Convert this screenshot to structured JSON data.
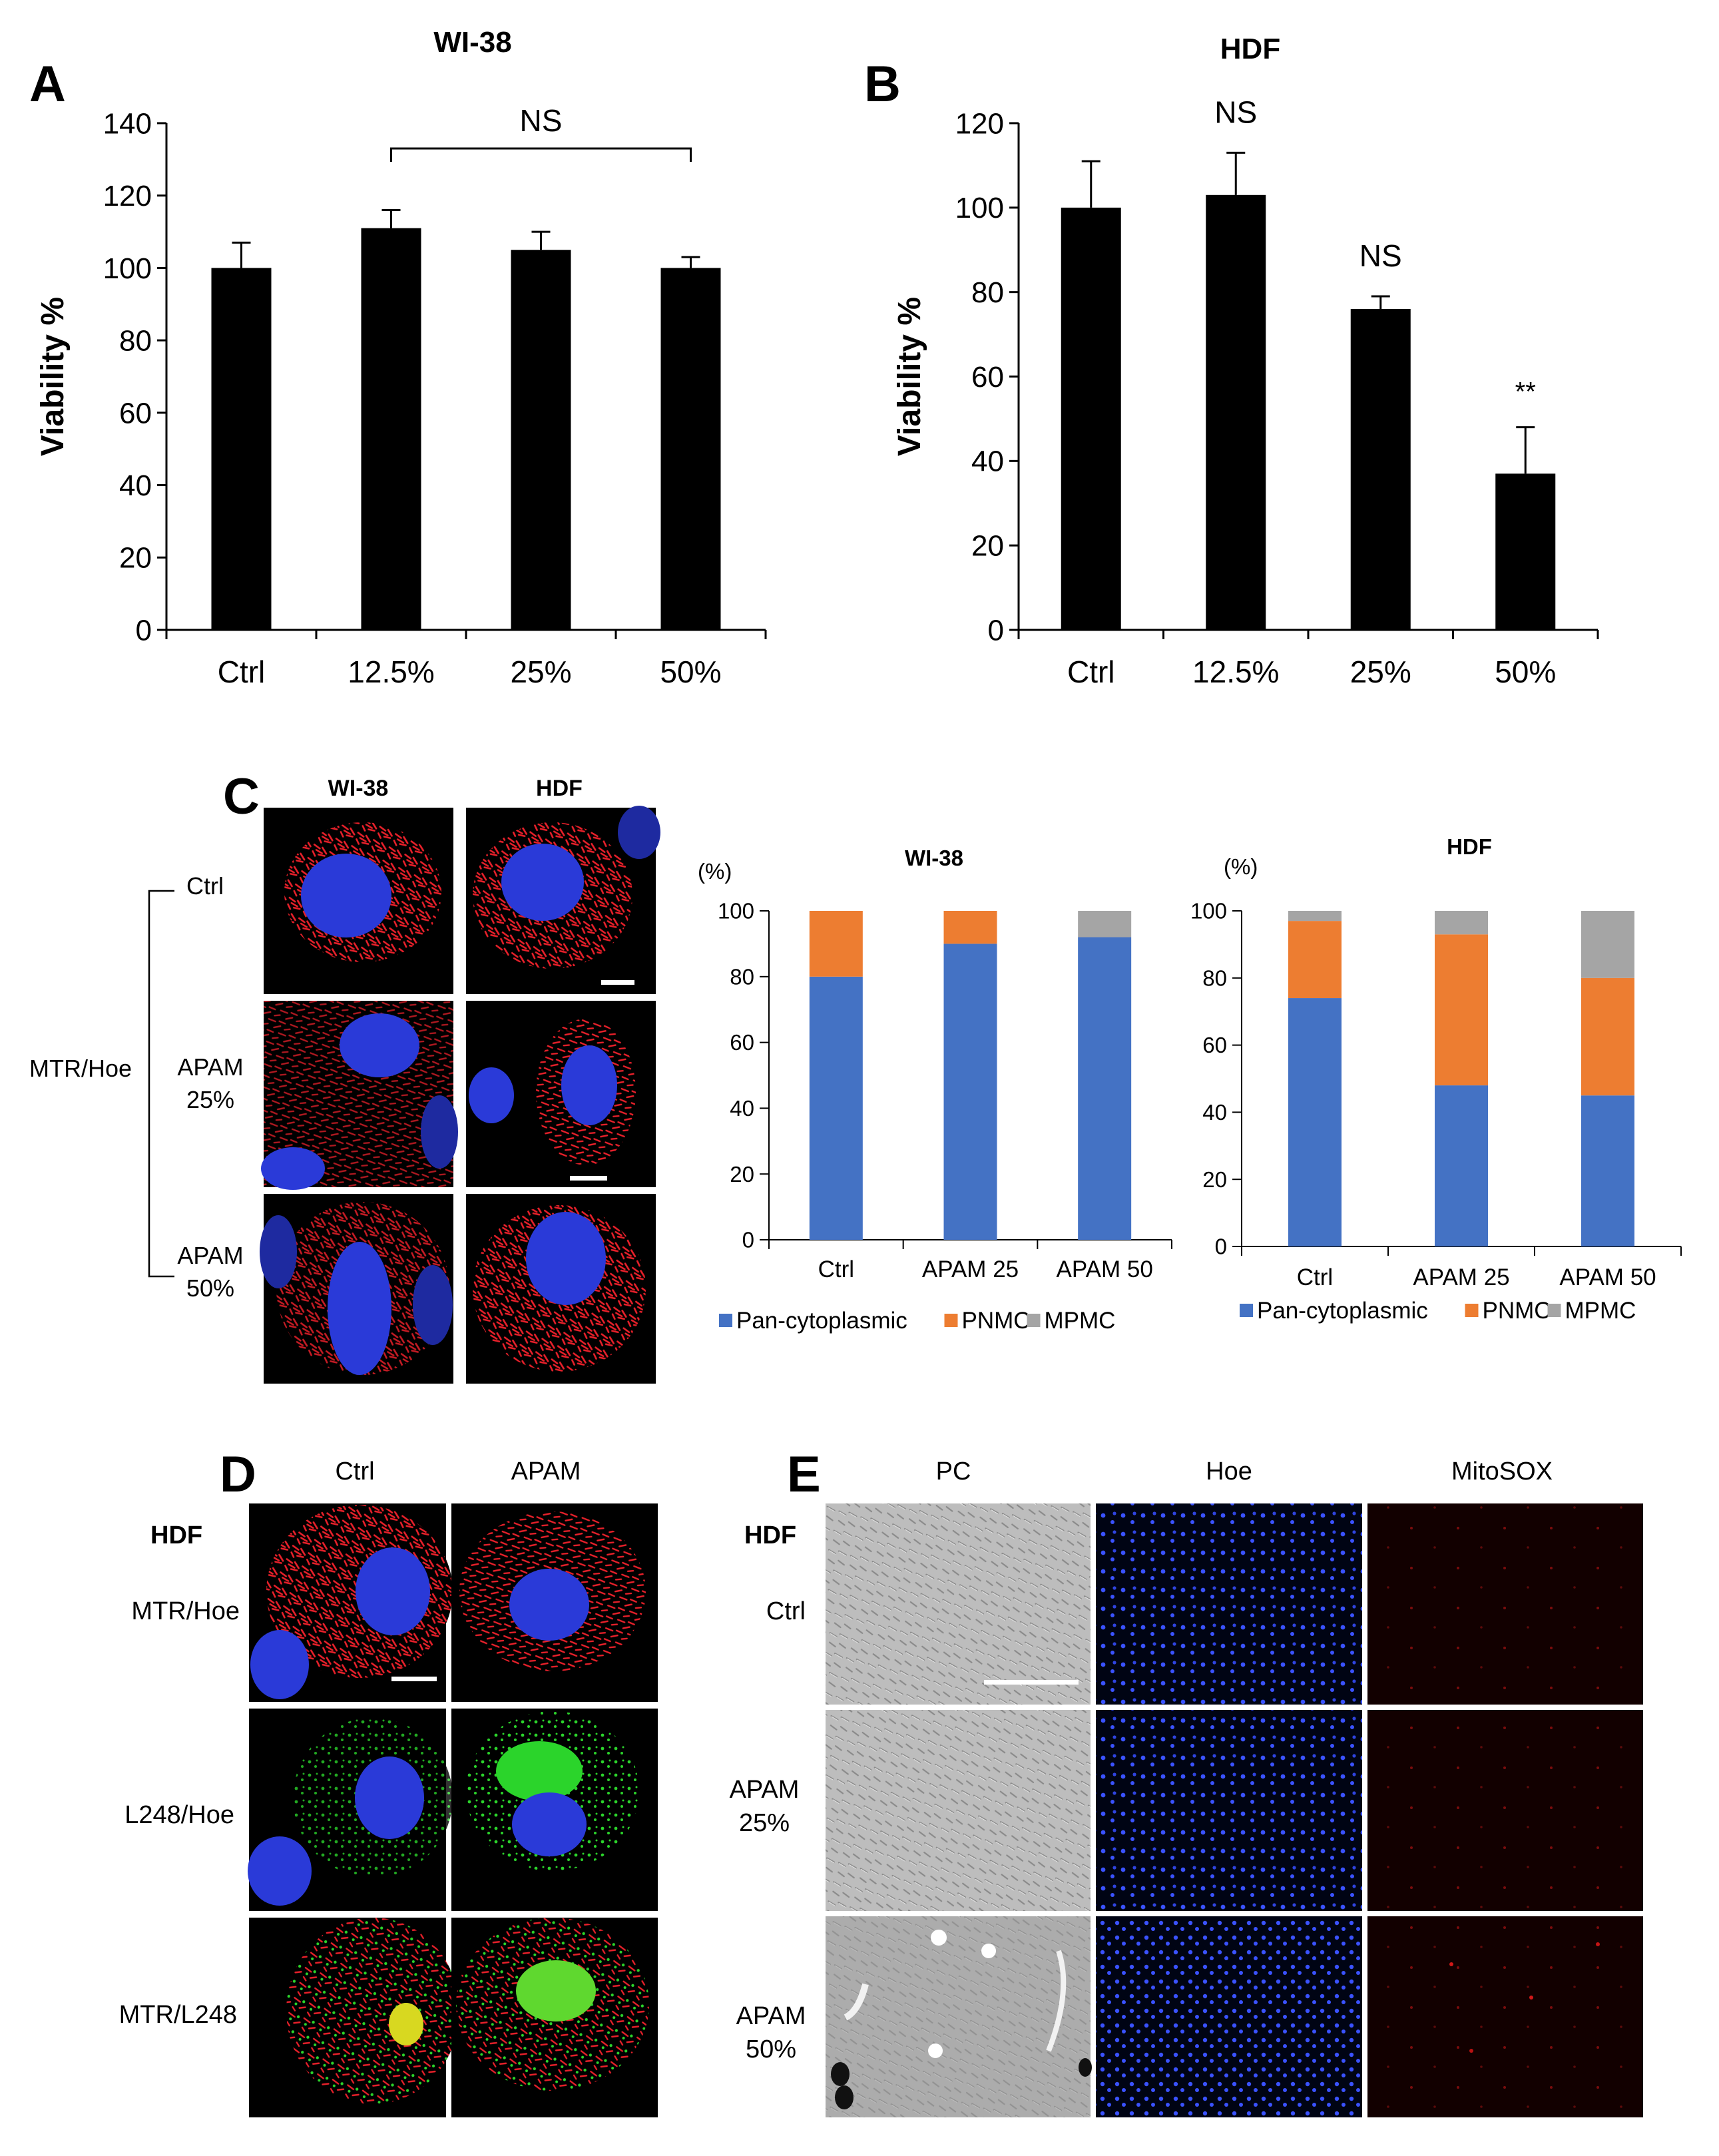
{
  "panels": {
    "A": {
      "letter": "A"
    },
    "B": {
      "letter": "B"
    },
    "C": {
      "letter": "C",
      "col_headers": [
        "WI-38",
        "HDF"
      ],
      "group_label": "MTR/Hoe",
      "row_labels": [
        [
          "Ctrl"
        ],
        [
          "APAM",
          "25%"
        ],
        [
          "APAM",
          "50%"
        ]
      ]
    },
    "D": {
      "letter": "D",
      "cell_label": "HDF",
      "col_headers": [
        "Ctrl",
        "APAM"
      ],
      "row_labels": [
        "MTR/Hoe",
        "L248/Hoe",
        "MTR/L248"
      ]
    },
    "E": {
      "letter": "E",
      "cell_label": "HDF",
      "col_headers": [
        "PC",
        "Hoe",
        "MitoSOX"
      ],
      "row_labels": [
        [
          "Ctrl"
        ],
        [
          "APAM",
          "25%"
        ],
        [
          "APAM",
          "50%"
        ]
      ]
    }
  },
  "colors": {
    "bar": "#000000",
    "pan_cytoplasmic": "#4472C4",
    "pnmc": "#ED7D31",
    "mpmc": "#A5A5A5",
    "mitochondria": "#e8202a",
    "lysosome": "#2bd42b",
    "nucleus": "#2a3ad8"
  },
  "chart_data": [
    {
      "id": "A",
      "type": "bar",
      "title": "WI-38",
      "ylabel": "Viability %",
      "categories": [
        "Ctrl",
        "12.5%",
        "25%",
        "50%"
      ],
      "values": [
        100,
        111,
        105,
        100
      ],
      "errors": [
        7,
        5,
        5,
        3
      ],
      "ylim": [
        0,
        140
      ],
      "yticks": [
        "0",
        "20",
        "40",
        "60",
        "80",
        "100",
        "120",
        "140"
      ],
      "annotations": [
        {
          "text": "NS",
          "span": [
            "12.5%",
            "50%"
          ]
        }
      ]
    },
    {
      "id": "B",
      "type": "bar",
      "title": "HDF",
      "ylabel": "Viability %",
      "categories": [
        "Ctrl",
        "12.5%",
        "25%",
        "50%"
      ],
      "values": [
        100,
        103,
        76,
        37
      ],
      "errors": [
        11,
        10,
        3,
        11
      ],
      "ylim": [
        0,
        120
      ],
      "yticks": [
        "0",
        "20",
        "40",
        "60",
        "80",
        "100",
        "120"
      ],
      "annotations": [
        {
          "text": "NS",
          "category": "12.5%"
        },
        {
          "text": "NS",
          "category": "25%"
        },
        {
          "text": "**",
          "category": "50%"
        }
      ]
    },
    {
      "id": "C1",
      "type": "bar",
      "stacked": true,
      "title": "WI-38",
      "ylabel": "(%)",
      "categories": [
        "Ctrl",
        "APAM 25",
        "APAM 50"
      ],
      "series": [
        {
          "name": "Pan-cytoplasmic",
          "values": [
            80,
            90,
            92
          ]
        },
        {
          "name": "PNMC",
          "values": [
            20,
            10,
            0
          ]
        },
        {
          "name": "MPMC",
          "values": [
            0,
            0,
            8
          ]
        }
      ],
      "ylim": [
        0,
        100
      ],
      "yticks": [
        "0",
        "20",
        "40",
        "60",
        "80",
        "100"
      ],
      "legend": "bottom"
    },
    {
      "id": "C2",
      "type": "bar",
      "stacked": true,
      "title": "HDF",
      "ylabel": "(%)",
      "categories": [
        "Ctrl",
        "APAM 25",
        "APAM 50"
      ],
      "series": [
        {
          "name": "Pan-cytoplasmic",
          "values": [
            74,
            48,
            45
          ]
        },
        {
          "name": "PNMC",
          "values": [
            23,
            45,
            35
          ]
        },
        {
          "name": "MPMC",
          "values": [
            3,
            7,
            20
          ]
        }
      ],
      "ylim": [
        0,
        100
      ],
      "yticks": [
        "0",
        "20",
        "40",
        "60",
        "80",
        "100"
      ],
      "legend": "bottom"
    }
  ]
}
